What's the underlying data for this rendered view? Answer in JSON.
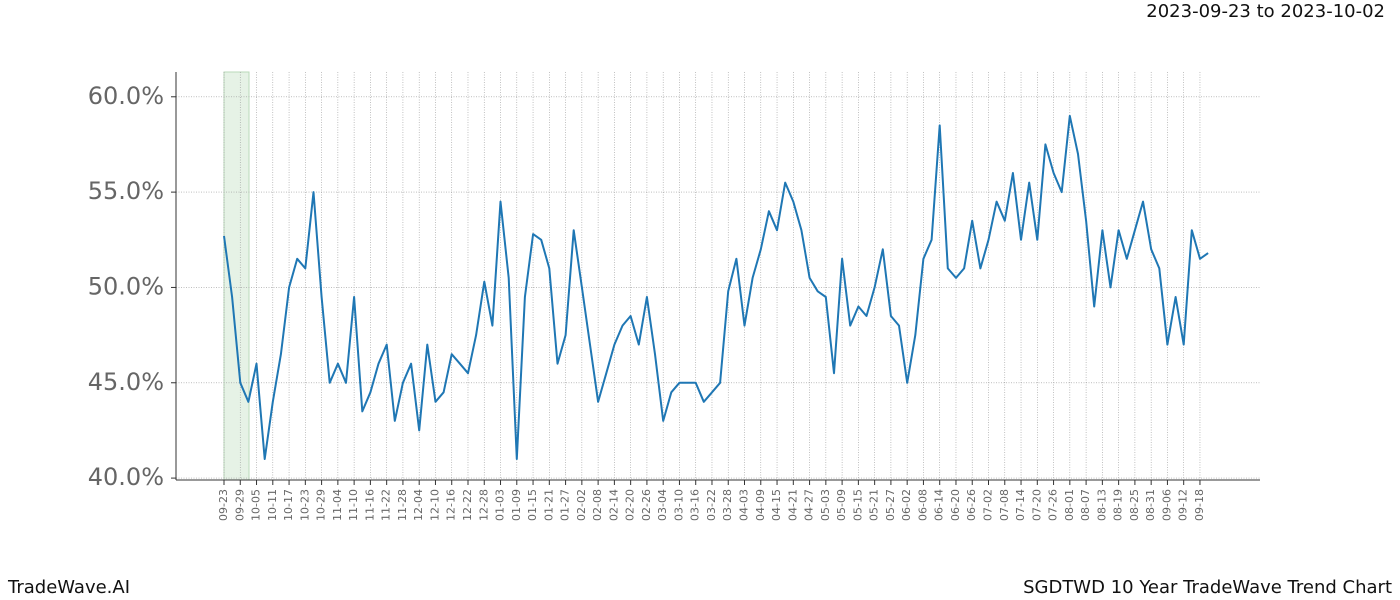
{
  "chart_data": {
    "type": "line",
    "title": "2023-09-23 to 2023-10-02",
    "footer_left": "TradeWave.AI",
    "footer_right": "SGDTWD 10 Year TradeWave Trend Chart",
    "categories": [
      "09-23",
      null,
      "09-29",
      null,
      "10-05",
      null,
      "10-11",
      null,
      "10-17",
      null,
      "10-23",
      null,
      "10-29",
      null,
      "11-04",
      null,
      "11-10",
      null,
      "11-16",
      null,
      "11-22",
      null,
      "11-28",
      null,
      "12-04",
      null,
      "12-10",
      null,
      "12-16",
      null,
      "12-22",
      null,
      "12-28",
      null,
      "01-03",
      null,
      "01-09",
      null,
      "01-15",
      null,
      "01-21",
      null,
      "01-27",
      null,
      "02-02",
      null,
      "02-08",
      null,
      "02-14",
      null,
      "02-20",
      null,
      "02-26",
      null,
      "03-04",
      null,
      "03-10",
      null,
      "03-16",
      null,
      "03-22",
      null,
      "03-28",
      null,
      "04-03",
      null,
      "04-09",
      null,
      "04-15",
      null,
      "04-21",
      null,
      "04-27",
      null,
      "05-03",
      null,
      "05-09",
      null,
      "05-15",
      null,
      "05-21",
      null,
      "05-27",
      null,
      "06-02",
      null,
      "06-08",
      null,
      "06-14",
      null,
      "06-20",
      null,
      "06-26",
      null,
      "07-02",
      null,
      "07-08",
      null,
      "07-14",
      null,
      "07-20",
      null,
      "07-26",
      null,
      "08-01",
      null,
      "08-07",
      null,
      "08-13",
      null,
      "08-19",
      null,
      "08-25",
      null,
      "08-31",
      null,
      "09-06",
      null,
      "09-12",
      null,
      "09-18",
      null
    ],
    "series": [
      {
        "color": "#1f77b4",
        "values": [
          52.7,
          49.5,
          45,
          44,
          46,
          41,
          44,
          46.5,
          50,
          51.5,
          51,
          55,
          49.5,
          45,
          46,
          45,
          49.5,
          43.5,
          44.5,
          46,
          47,
          43,
          45,
          46,
          42.5,
          47,
          44,
          44.5,
          46.5,
          46,
          45.5,
          47.5,
          50.3,
          48,
          54.5,
          50.5,
          41,
          49.5,
          52.8,
          52.5,
          51,
          46,
          47.5,
          53,
          50,
          47,
          44,
          45.5,
          47,
          48,
          48.5,
          47,
          49.5,
          46.5,
          43,
          44.5,
          45,
          45,
          45,
          44,
          44.5,
          45,
          49.8,
          51.5,
          48,
          50.5,
          52,
          54,
          53,
          55.5,
          54.5,
          53,
          50.5,
          49.8,
          49.5,
          45.5,
          51.5,
          48,
          49,
          48.5,
          50,
          52,
          48.5,
          48,
          45,
          47.5,
          51.5,
          52.5,
          58.5,
          51,
          50.5,
          51,
          53.5,
          51,
          52.5,
          54.5,
          53.5,
          56,
          52.5,
          55.5,
          52.5,
          57.5,
          56,
          55,
          59,
          57,
          53.5,
          49,
          53,
          50,
          53,
          51.5,
          53,
          54.5,
          52,
          51,
          47,
          49.5,
          47,
          53,
          51.5,
          51.8
        ]
      }
    ],
    "ylim": [
      39.9,
      61.3
    ],
    "yticks": [
      {
        "value": 40,
        "label": "40.0%"
      },
      {
        "value": 45,
        "label": "45.0%"
      },
      {
        "value": 50,
        "label": "50.0%"
      },
      {
        "value": 55,
        "label": "55.0%"
      },
      {
        "value": 60,
        "label": "60.0%"
      }
    ],
    "grid": true
  }
}
